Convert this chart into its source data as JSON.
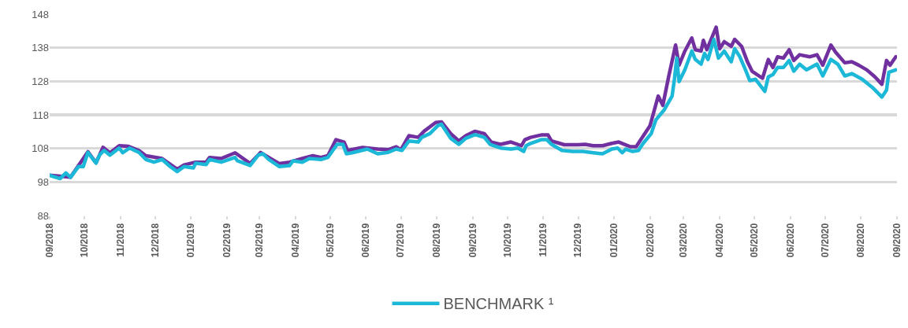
{
  "chart_data": {
    "type": "line",
    "grid": "y",
    "legend": "bottom",
    "line_style": "solid",
    "xlim": [
      "2018-09-01",
      "2020-09-01"
    ],
    "xticks": [
      {
        "value": "2018-09-01",
        "label": "09/2018"
      },
      {
        "value": "2018-10-01",
        "label": "10/2018"
      },
      {
        "value": "2018-11-01",
        "label": "11/2018"
      },
      {
        "value": "2018-12-01",
        "label": "12/2018"
      },
      {
        "value": "2019-01-01",
        "label": "01/2019"
      },
      {
        "value": "2019-02-01",
        "label": "02/2019"
      },
      {
        "value": "2019-03-01",
        "label": "03/2019"
      },
      {
        "value": "2019-04-01",
        "label": "04/2019"
      },
      {
        "value": "2019-05-01",
        "label": "05/2019"
      },
      {
        "value": "2019-06-01",
        "label": "06/2019"
      },
      {
        "value": "2019-07-01",
        "label": "07/2019"
      },
      {
        "value": "2019-08-01",
        "label": "08/2019"
      },
      {
        "value": "2019-09-01",
        "label": "09/2019"
      },
      {
        "value": "2019-10-01",
        "label": "10/2019"
      },
      {
        "value": "2019-11-01",
        "label": "11/2019"
      },
      {
        "value": "2019-12-01",
        "label": "12/2019"
      },
      {
        "value": "2020-01-01",
        "label": "01/2020"
      },
      {
        "value": "2020-02-01",
        "label": "02/2020"
      },
      {
        "value": "2020-03-01",
        "label": "03/2020"
      },
      {
        "value": "2020-04-01",
        "label": "04/2020"
      },
      {
        "value": "2020-05-01",
        "label": "05/2020"
      },
      {
        "value": "2020-06-01",
        "label": "06/2020"
      },
      {
        "value": "2020-07-01",
        "label": "07/2020"
      },
      {
        "value": "2020-08-01",
        "label": "08/2020"
      },
      {
        "value": "2020-09-01",
        "label": "09/2020"
      }
    ],
    "ylim": [
      88,
      148
    ],
    "yticks": [
      88,
      98,
      108,
      118,
      128,
      138,
      148
    ],
    "series": [
      {
        "color": "#7030a0",
        "x": [
          "2018-09-01",
          "2018-09-19",
          "2018-10-04",
          "2018-10-11",
          "2018-10-17",
          "2018-10-23",
          "2018-10-31",
          "2018-11-08",
          "2018-11-17",
          "2018-11-23",
          "2018-12-07",
          "2018-12-20",
          "2018-12-26",
          "2019-01-05",
          "2019-01-14",
          "2019-01-17",
          "2019-01-27",
          "2019-02-08",
          "2019-02-21",
          "2019-03-02",
          "2019-03-09",
          "2019-03-18",
          "2019-03-27",
          "2019-04-07",
          "2019-04-16",
          "2019-04-23",
          "2019-04-29",
          "2019-05-06",
          "2019-05-13",
          "2019-05-16",
          "2019-05-29",
          "2019-06-11",
          "2019-06-20",
          "2019-06-27",
          "2019-07-01",
          "2019-07-08",
          "2019-07-16",
          "2019-07-21",
          "2019-07-31",
          "2019-08-05",
          "2019-08-13",
          "2019-08-20",
          "2019-08-26",
          "2019-09-03",
          "2019-09-11",
          "2019-09-17",
          "2019-09-25",
          "2019-10-04",
          "2019-10-13",
          "2019-10-16",
          "2019-10-21",
          "2019-10-30",
          "2019-11-05",
          "2019-11-08",
          "2019-11-19",
          "2019-12-01",
          "2019-12-07",
          "2019-12-14",
          "2019-12-22",
          "2019-12-30",
          "2020-01-05",
          "2020-01-10",
          "2020-01-15",
          "2020-01-20",
          "2020-01-24",
          "2020-02-01",
          "2020-02-08",
          "2020-02-12",
          "2020-02-17",
          "2020-02-23",
          "2020-02-26",
          "2020-03-02",
          "2020-03-08",
          "2020-03-11",
          "2020-03-16",
          "2020-03-18",
          "2020-03-21",
          "2020-03-29",
          "2020-04-01",
          "2020-04-05",
          "2020-04-11",
          "2020-04-14",
          "2020-04-20",
          "2020-04-25",
          "2020-04-29",
          "2020-05-08",
          "2020-05-13",
          "2020-05-17",
          "2020-05-21",
          "2020-05-26",
          "2020-05-31",
          "2020-06-04",
          "2020-06-09",
          "2020-06-18",
          "2020-06-24",
          "2020-06-29",
          "2020-07-06",
          "2020-07-10",
          "2020-07-18",
          "2020-07-24",
          "2020-07-30",
          "2020-08-06",
          "2020-08-13",
          "2020-08-19",
          "2020-08-23",
          "2020-08-26",
          "2020-08-31"
        ],
        "values": [
          100.0,
          99.4,
          107.0,
          103.7,
          108.3,
          106.7,
          108.8,
          108.6,
          107.4,
          105.8,
          105.0,
          101.8,
          103.1,
          103.9,
          103.9,
          105.3,
          105.0,
          106.7,
          103.5,
          106.8,
          105.3,
          103.5,
          103.9,
          105.0,
          105.8,
          105.3,
          105.8,
          110.6,
          109.9,
          107.4,
          108.3,
          107.8,
          107.6,
          108.5,
          107.6,
          111.8,
          111.3,
          113.1,
          115.7,
          115.9,
          112.4,
          110.2,
          111.8,
          113.1,
          112.4,
          109.9,
          109.2,
          109.9,
          108.8,
          110.6,
          111.3,
          112.0,
          112.0,
          110.2,
          109.1,
          109.1,
          109.2,
          108.8,
          108.8,
          109.5,
          109.9,
          109.2,
          108.5,
          108.5,
          110.6,
          114.8,
          123.6,
          120.8,
          129.3,
          138.8,
          132.8,
          137.0,
          140.9,
          137.4,
          137.0,
          140.2,
          137.4,
          144.1,
          137.7,
          139.8,
          138.4,
          140.5,
          138.4,
          133.8,
          131.0,
          128.9,
          134.5,
          132.1,
          135.3,
          134.9,
          137.4,
          134.2,
          135.9,
          135.3,
          135.9,
          132.8,
          138.8,
          136.7,
          133.5,
          133.8,
          132.8,
          131.4,
          129.3,
          127.1,
          134.2,
          132.8,
          135.3
        ]
      },
      {
        "name": "BENCHMARK ¹",
        "color": "#1cb8d8",
        "x": [
          "2018-09-01",
          "2018-09-10",
          "2018-09-15",
          "2018-09-19",
          "2018-09-26",
          "2018-09-30",
          "2018-10-04",
          "2018-10-11",
          "2018-10-14",
          "2018-10-18",
          "2018-10-23",
          "2018-10-31",
          "2018-11-03",
          "2018-11-09",
          "2018-11-17",
          "2018-11-23",
          "2018-11-30",
          "2018-12-07",
          "2018-12-14",
          "2018-12-20",
          "2018-12-26",
          "2019-01-03",
          "2019-01-05",
          "2019-01-14",
          "2019-01-17",
          "2019-01-27",
          "2019-02-08",
          "2019-02-10",
          "2019-02-21",
          "2019-02-28",
          "2019-03-04",
          "2019-03-09",
          "2019-03-18",
          "2019-03-27",
          "2019-03-30",
          "2019-04-07",
          "2019-04-13",
          "2019-04-23",
          "2019-04-29",
          "2019-05-07",
          "2019-05-12",
          "2019-05-15",
          "2019-05-20",
          "2019-06-02",
          "2019-06-11",
          "2019-06-20",
          "2019-06-27",
          "2019-07-02",
          "2019-07-08",
          "2019-07-16",
          "2019-07-19",
          "2019-07-26",
          "2019-08-02",
          "2019-08-05",
          "2019-08-13",
          "2019-08-20",
          "2019-08-26",
          "2019-09-03",
          "2019-09-11",
          "2019-09-16",
          "2019-09-25",
          "2019-10-04",
          "2019-10-10",
          "2019-10-15",
          "2019-10-17",
          "2019-10-21",
          "2019-10-30",
          "2019-11-04",
          "2019-11-08",
          "2019-11-17",
          "2019-11-26",
          "2019-12-05",
          "2019-12-14",
          "2019-12-22",
          "2019-12-30",
          "2020-01-04",
          "2020-01-08",
          "2020-01-11",
          "2020-01-17",
          "2020-01-22",
          "2020-01-26",
          "2020-02-02",
          "2020-02-06",
          "2020-02-13",
          "2020-02-20",
          "2020-02-22",
          "2020-02-24",
          "2020-02-26",
          "2020-03-02",
          "2020-03-08",
          "2020-03-11",
          "2020-03-16",
          "2020-03-19",
          "2020-03-22",
          "2020-03-27",
          "2020-03-31",
          "2020-04-05",
          "2020-04-11",
          "2020-04-14",
          "2020-04-18",
          "2020-04-23",
          "2020-04-27",
          "2020-05-02",
          "2020-05-10",
          "2020-05-13",
          "2020-05-17",
          "2020-05-21",
          "2020-05-26",
          "2020-05-31",
          "2020-06-04",
          "2020-06-09",
          "2020-06-15",
          "2020-06-24",
          "2020-06-29",
          "2020-07-06",
          "2020-07-12",
          "2020-07-18",
          "2020-07-24",
          "2020-08-02",
          "2020-08-11",
          "2020-08-19",
          "2020-08-23",
          "2020-08-25",
          "2020-08-31"
        ],
        "values": [
          100.0,
          99.0,
          100.7,
          99.4,
          102.6,
          102.6,
          106.8,
          103.6,
          106.0,
          107.4,
          106.0,
          108.1,
          106.7,
          108.1,
          106.8,
          104.7,
          103.9,
          104.7,
          102.6,
          101.1,
          102.6,
          102.2,
          103.6,
          103.2,
          104.7,
          103.9,
          105.3,
          104.3,
          102.9,
          106.0,
          106.4,
          104.7,
          102.6,
          102.9,
          104.3,
          103.9,
          105.0,
          104.7,
          105.3,
          109.2,
          109.2,
          106.4,
          106.7,
          107.8,
          106.4,
          106.8,
          107.8,
          107.4,
          110.2,
          109.9,
          111.3,
          112.4,
          114.8,
          115.2,
          111.0,
          109.2,
          111.0,
          112.1,
          111.3,
          109.2,
          108.1,
          107.8,
          108.1,
          107.1,
          108.8,
          109.5,
          110.6,
          110.6,
          109.2,
          107.4,
          107.1,
          107.1,
          106.7,
          106.4,
          107.8,
          108.1,
          106.7,
          107.8,
          107.1,
          107.4,
          109.5,
          112.4,
          116.5,
          119.4,
          123.6,
          128.6,
          134.9,
          127.9,
          131.4,
          137.0,
          134.5,
          133.1,
          136.3,
          134.5,
          140.5,
          134.9,
          137.0,
          133.8,
          137.7,
          135.6,
          131.7,
          128.2,
          128.6,
          125.0,
          129.3,
          130.0,
          132.1,
          132.1,
          134.2,
          131.0,
          133.1,
          131.4,
          133.1,
          129.6,
          134.5,
          133.1,
          129.6,
          130.3,
          128.6,
          126.1,
          123.3,
          125.4,
          130.7,
          131.4
        ]
      }
    ]
  }
}
